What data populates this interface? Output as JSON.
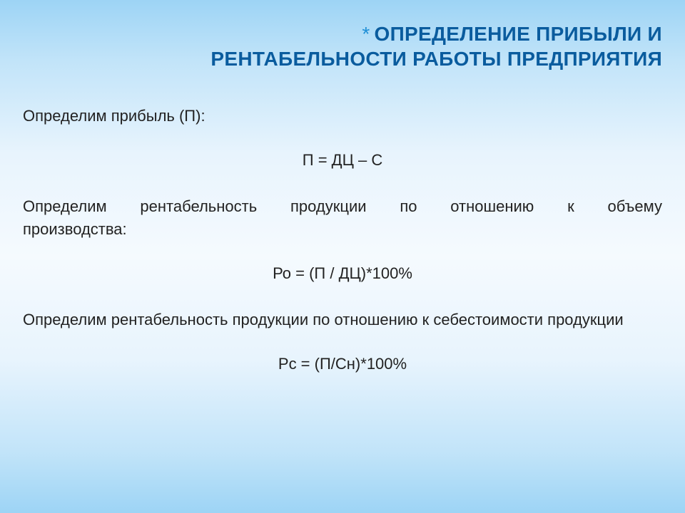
{
  "title": {
    "asterisk": "*",
    "line1": "ОПРЕДЕЛЕНИЕ ПРИБЫЛИ И",
    "line2": "РЕНТАБЕЛЬНОСТИ РАБОТЫ ПРЕДПРИЯТИЯ",
    "color": "#0a5c9e",
    "asterisk_color": "#1f8fd6",
    "fontsize": 28,
    "fontweight": "bold"
  },
  "body": {
    "fontsize": 22,
    "color": "#222222",
    "para1": "Определим прибыль (П):",
    "formula1": "П = ДЦ – С",
    "para2": "Определим рентабельность продукции по отношению к объему производства:",
    "formula2": "Ро = (П / ДЦ)*100%",
    "para3": "Определим рентабельность продукции по отношению к себестоимости продукции",
    "formula3": "Рс = (П/Сн)*100%"
  },
  "background": {
    "gradient_top": "#9dd4f5",
    "gradient_mid": "#f5fafe",
    "gradient_bottom": "#9dd4f5"
  }
}
